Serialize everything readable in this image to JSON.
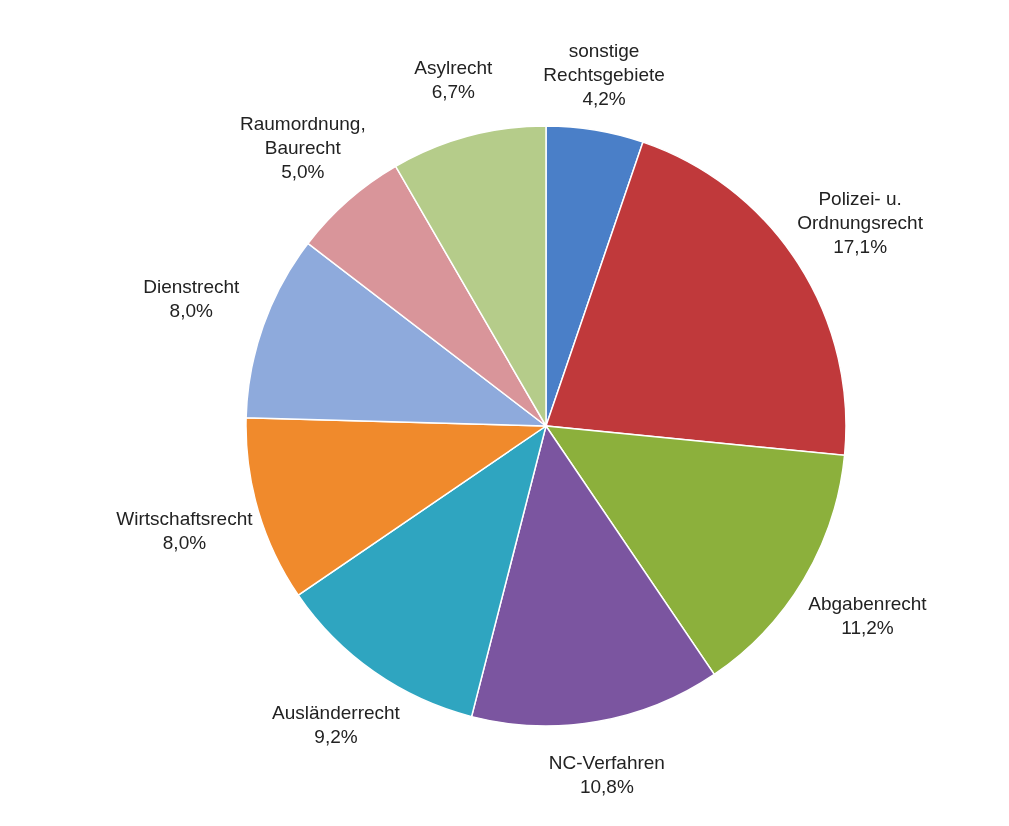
{
  "chart_data": {
    "type": "pie",
    "categories": [
      "sonstige Rechtsgebiete",
      "Polizei- u. Ordnungsrecht",
      "Abgabenrecht",
      "NC-Verfahren",
      "Ausländerrecht",
      "Wirtschaftsrecht",
      "Dienstrecht",
      "Raumordnung, Baurecht",
      "Asylrecht"
    ],
    "values": [
      4.2,
      17.1,
      11.2,
      10.8,
      9.2,
      8.0,
      8.0,
      5.0,
      6.7
    ],
    "value_labels": [
      "4,2%",
      "17,1%",
      "11,2%",
      "10,8%",
      "9,2%",
      "8,0%",
      "8,0%",
      "5,0%",
      "6,7%"
    ],
    "colors": [
      "#4a7fc8",
      "#c0393b",
      "#8cb03c",
      "#7b55a0",
      "#2fa5c0",
      "#f08a2c",
      "#8eaadc",
      "#d9959a",
      "#b5cc8a"
    ]
  }
}
